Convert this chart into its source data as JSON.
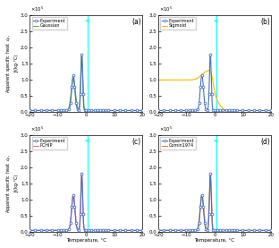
{
  "xlim": [
    -20,
    20
  ],
  "ylim": [
    0,
    3.0
  ],
  "xticks": [
    -20,
    -10,
    0,
    10,
    20
  ],
  "yticks": [
    0,
    0.5,
    1.0,
    1.5,
    2.0,
    2.5,
    3.0
  ],
  "xlabel": "Temperature, °C",
  "ylabel": "Apparent specific heat  c_p, J/(kg·°C)",
  "scale_exp": 5,
  "panels": [
    "(a)",
    "(b)",
    "(c)",
    "(d)"
  ],
  "methods": [
    "Gaussian",
    "Sigmoid",
    "PCHIP",
    "Comin1974"
  ],
  "exp_color": "#4472C4",
  "method_colors": [
    "#70AD47",
    "#FFC000",
    "#FF69B4",
    "#ED7D31"
  ],
  "vline_color": "#00FFFF",
  "vline_x": 0.5,
  "background": "#FFFFFF"
}
